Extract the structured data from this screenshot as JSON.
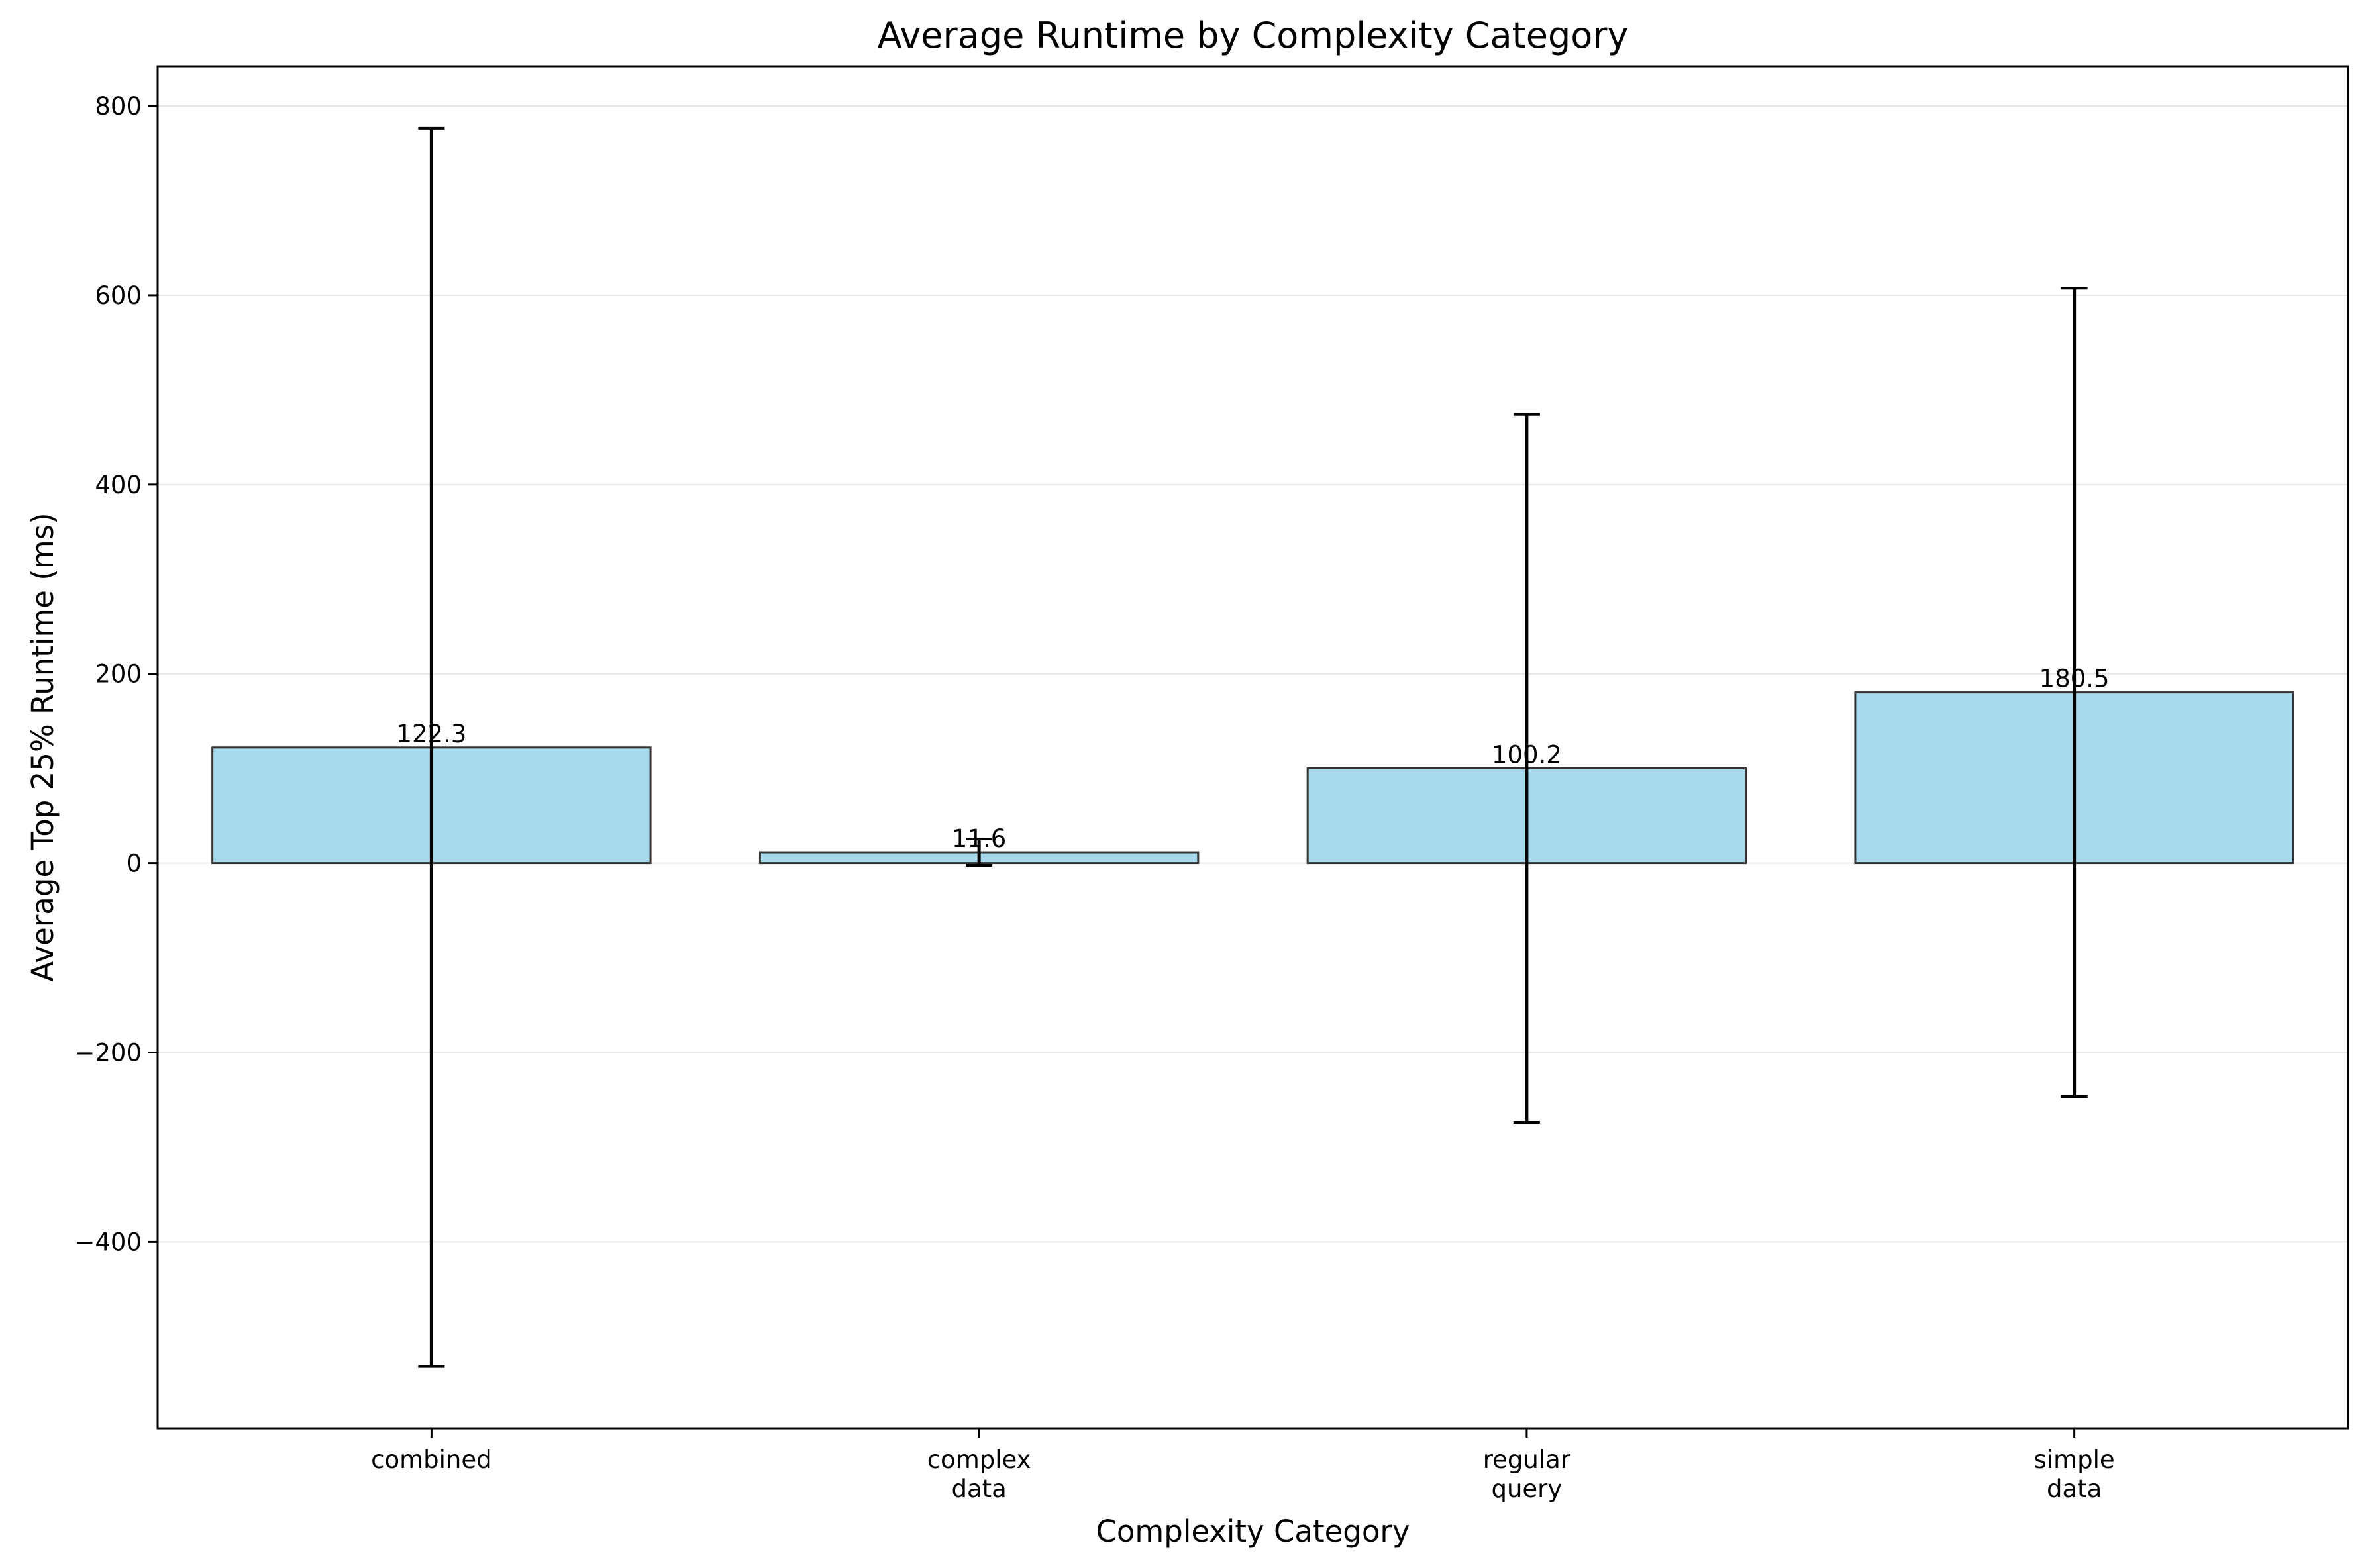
{
  "chart_data": {
    "type": "bar",
    "title": "Average Runtime by Complexity Category",
    "xlabel": "Complexity Category",
    "ylabel": "Average Top 25% Runtime (ms)",
    "categories": [
      [
        "combined"
      ],
      [
        "complex",
        "data"
      ],
      [
        "regular",
        "query"
      ],
      [
        "simple",
        "data"
      ]
    ],
    "values": [
      122.3,
      11.6,
      100.2,
      180.5
    ],
    "value_labels": [
      "122.3",
      "11.6",
      "100.2",
      "180.5"
    ],
    "error": [
      654,
      14,
      374,
      427
    ],
    "ylim": [
      -597,
      842
    ],
    "yticks": [
      -400,
      -200,
      0,
      200,
      400,
      600,
      800
    ],
    "ytick_labels": [
      "−400",
      "−200",
      "0",
      "200",
      "400",
      "600",
      "800"
    ],
    "grid": "y",
    "legend": "none",
    "colors": {
      "bar_fill": "#a8daed",
      "bar_edge": "#333333",
      "error_bar": "#000000",
      "grid": "#e6e6e6"
    }
  }
}
